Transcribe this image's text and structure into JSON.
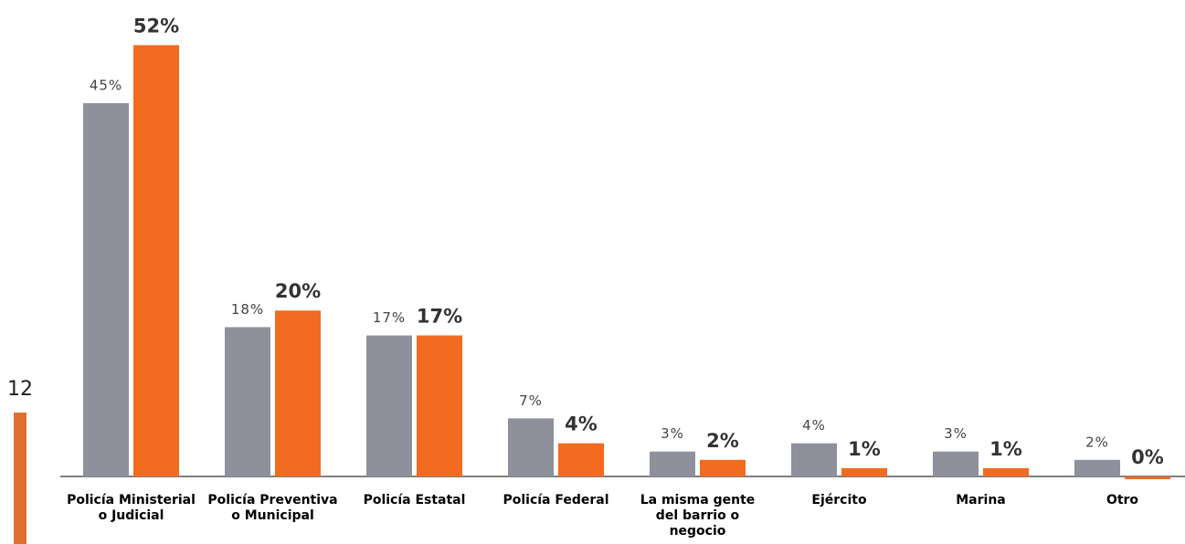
{
  "page_number": "12",
  "chart_data": {
    "type": "bar",
    "categories": [
      "Policía Ministerial o Judicial",
      "Policía Preventiva o Municipal",
      "Policía Estatal",
      "Policía Federal",
      "La misma gente del barrio o negocio",
      "Ejército",
      "Marina",
      "Otro"
    ],
    "series": [
      {
        "color": "#8e909c",
        "values": [
          45,
          18,
          17,
          7,
          3,
          4,
          3,
          2
        ],
        "value_labels": [
          "45%",
          "18%",
          "17%",
          "7%",
          "3%",
          "4%",
          "3%",
          "2%"
        ]
      },
      {
        "color": "#f26b21",
        "values": [
          52,
          20,
          17,
          4,
          2,
          1,
          1,
          0
        ],
        "value_labels": [
          "52%",
          "20%",
          "17%",
          "4%",
          "2%",
          "1%",
          "1%",
          "0%"
        ]
      }
    ],
    "ylim": [
      0,
      57
    ]
  }
}
